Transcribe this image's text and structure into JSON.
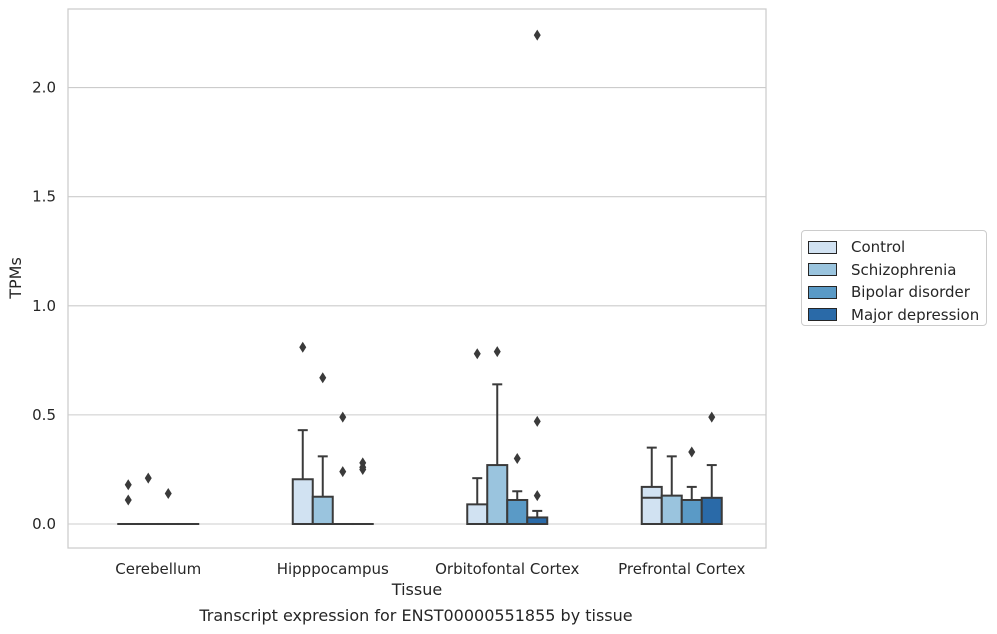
{
  "chart_data": {
    "type": "box",
    "caption": "Transcript expression for ENST00000551855 by tissue",
    "xlabel": "Tissue",
    "ylabel": "TPMs",
    "ylim": [
      -0.11,
      2.36
    ],
    "yticks": [
      "0.0",
      "0.5",
      "1.0",
      "1.5",
      "2.0"
    ],
    "ytick_values": [
      0.0,
      0.5,
      1.0,
      1.5,
      2.0
    ],
    "grid": true,
    "legend_position": "right",
    "categories": [
      "Cerebellum",
      "Hipppocampus",
      "Orbitofontal Cortex",
      "Prefrontal Cortex"
    ],
    "series": [
      {
        "name": "Control",
        "color": "#d1e2f2",
        "boxes": [
          {
            "q1": 0,
            "median": 0,
            "q3": 0,
            "whisker_low": 0,
            "whisker_high": 0,
            "outliers": [
              0.18,
              0.11
            ]
          },
          {
            "q1": 0,
            "median": 0,
            "q3": 0.205,
            "whisker_low": 0,
            "whisker_high": 0.43,
            "outliers": [
              0.81
            ]
          },
          {
            "q1": 0,
            "median": 0,
            "q3": 0.09,
            "whisker_low": 0,
            "whisker_high": 0.21,
            "outliers": [
              0.78
            ]
          },
          {
            "q1": 0,
            "median": 0.12,
            "q3": 0.17,
            "whisker_low": 0,
            "whisker_high": 0.35,
            "outliers": []
          }
        ]
      },
      {
        "name": "Schizophrenia",
        "color": "#9ac4de",
        "boxes": [
          {
            "q1": 0,
            "median": 0,
            "q3": 0,
            "whisker_low": 0,
            "whisker_high": 0,
            "outliers": [
              0.21
            ]
          },
          {
            "q1": 0,
            "median": 0,
            "q3": 0.125,
            "whisker_low": 0,
            "whisker_high": 0.31,
            "outliers": [
              0.67
            ]
          },
          {
            "q1": 0,
            "median": 0,
            "q3": 0.27,
            "whisker_low": 0,
            "whisker_high": 0.64,
            "outliers": [
              0.79
            ]
          },
          {
            "q1": 0,
            "median": 0,
            "q3": 0.13,
            "whisker_low": 0,
            "whisker_high": 0.31,
            "outliers": []
          }
        ]
      },
      {
        "name": "Bipolar disorder",
        "color": "#5a9ac6",
        "boxes": [
          {
            "q1": 0,
            "median": 0,
            "q3": 0,
            "whisker_low": 0,
            "whisker_high": 0,
            "outliers": [
              0.14
            ]
          },
          {
            "q1": 0,
            "median": 0,
            "q3": 0,
            "whisker_low": 0,
            "whisker_high": 0,
            "outliers": [
              0.49,
              0.24
            ]
          },
          {
            "q1": 0,
            "median": 0,
            "q3": 0.11,
            "whisker_low": 0,
            "whisker_high": 0.15,
            "outliers": [
              0.3
            ]
          },
          {
            "q1": 0,
            "median": 0,
            "q3": 0.11,
            "whisker_low": 0,
            "whisker_high": 0.17,
            "outliers": [
              0.33
            ]
          }
        ]
      },
      {
        "name": "Major depression",
        "color": "#2a6aa8",
        "boxes": [
          {
            "q1": 0,
            "median": 0,
            "q3": 0,
            "whisker_low": 0,
            "whisker_high": 0,
            "outliers": []
          },
          {
            "q1": 0,
            "median": 0,
            "q3": 0,
            "whisker_low": 0,
            "whisker_high": 0,
            "outliers": [
              0.28,
              0.26,
              0.25
            ]
          },
          {
            "q1": 0,
            "median": 0,
            "q3": 0.03,
            "whisker_low": 0,
            "whisker_high": 0.06,
            "outliers": [
              0.47,
              0.13,
              2.24
            ]
          },
          {
            "q1": 0,
            "median": 0,
            "q3": 0.12,
            "whisker_low": 0,
            "whisker_high": 0.27,
            "outliers": [
              0.49
            ]
          }
        ]
      }
    ]
  }
}
